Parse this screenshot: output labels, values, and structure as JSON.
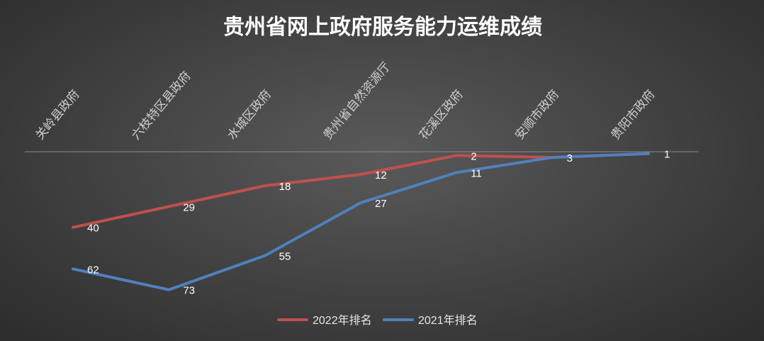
{
  "chart_data": {
    "type": "line",
    "title": "贵州省网上政府服务能力运维成绩",
    "categories": [
      "关岭县政府",
      "六枝特区县政府",
      "水城区政府",
      "贵州省自然资源厅",
      "花溪区政府",
      "安顺市政府",
      "贵阳市政府"
    ],
    "series": [
      {
        "name": "2022年排名",
        "color": "#c0504d",
        "values": [
          40,
          29,
          18,
          12,
          2,
          3,
          1
        ]
      },
      {
        "name": "2021年排名",
        "color": "#4f81bd",
        "values": [
          62,
          73,
          55,
          27,
          11,
          3,
          1
        ]
      }
    ],
    "ylim": [
      0,
      75
    ],
    "y_inverted": true,
    "grid": false,
    "legend_position": "bottom"
  }
}
